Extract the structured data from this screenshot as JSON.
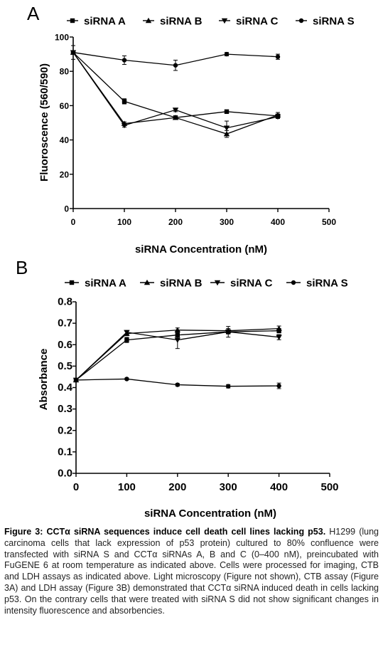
{
  "panels": [
    {
      "letter": "A",
      "chart_data": {
        "type": "line",
        "title": "",
        "xlabel": "siRNA Concentration (nM)",
        "ylabel": "Fluoroscence (560/590)",
        "xlim": [
          0,
          500
        ],
        "ylim": [
          0,
          100
        ],
        "xticks": [
          "0",
          "100",
          "200",
          "300",
          "400",
          "500"
        ],
        "yticks": [
          "0",
          "20",
          "40",
          "60",
          "80",
          "100"
        ],
        "x": [
          0,
          100,
          200,
          300,
          400
        ],
        "series": [
          {
            "name": "siRNA A",
            "marker": "square",
            "values": [
              91,
              62.5,
              53,
              56.5,
              54
            ],
            "errors": [
              1,
              1.5,
              1,
              1,
              1
            ]
          },
          {
            "name": "siRNA B",
            "marker": "triangle-up",
            "values": [
              91,
              49.5,
              53,
              43.5,
              54.5
            ],
            "errors": [
              1,
              1,
              1,
              2,
              1.5
            ]
          },
          {
            "name": "siRNA C",
            "marker": "triangle-down",
            "values": [
              91,
              48.5,
              57.5,
              47,
              53.5
            ],
            "errors": [
              1,
              1,
              1,
              4,
              1
            ]
          },
          {
            "name": "siRNA S",
            "marker": "circle",
            "values": [
              91,
              86.5,
              83.5,
              90,
              88.5
            ],
            "errors": [
              4,
              2.5,
              3,
              1,
              1.5
            ]
          }
        ],
        "legend_position": "top"
      }
    },
    {
      "letter": "B",
      "chart_data": {
        "type": "line",
        "title": "",
        "xlabel": "siRNA Concentration (nM)",
        "ylabel": "Absorbance",
        "xlim": [
          0,
          500
        ],
        "ylim": [
          0,
          0.8
        ],
        "xticks": [
          "0",
          "100",
          "200",
          "300",
          "400",
          "500"
        ],
        "yticks": [
          "0.0",
          "0.1",
          "0.2",
          "0.3",
          "0.4",
          "0.5",
          "0.6",
          "0.7",
          "0.8"
        ],
        "x": [
          0,
          100,
          200,
          300,
          400
        ],
        "series": [
          {
            "name": "siRNA A",
            "marker": "square",
            "values": [
              0.435,
              0.622,
              0.645,
              0.66,
              0.665
            ],
            "errors": [
              0.005,
              0.012,
              0.01,
              0.01,
              0.01
            ]
          },
          {
            "name": "siRNA B",
            "marker": "triangle-up",
            "values": [
              0.435,
              0.652,
              0.668,
              0.665,
              0.675
            ],
            "errors": [
              0.005,
              0.01,
              0.01,
              0.01,
              0.012
            ]
          },
          {
            "name": "siRNA C",
            "marker": "triangle-down",
            "values": [
              0.435,
              0.658,
              0.622,
              0.66,
              0.635
            ],
            "errors": [
              0.005,
              0.008,
              0.04,
              0.025,
              0.012
            ]
          },
          {
            "name": "siRNA S",
            "marker": "circle",
            "values": [
              0.435,
              0.44,
              0.413,
              0.406,
              0.408
            ],
            "errors": [
              0.005,
              0.004,
              0.006,
              0.008,
              0.013
            ]
          }
        ],
        "legend_position": "top"
      }
    }
  ],
  "caption": {
    "title": "Figure 3: CCTα siRNA sequences induce cell death cell lines lacking p53.",
    "body": "H1299 (lung carcinoma cells that lack expression of p53 protein) cultured to 80% confluence were transfected with siRNA S and CCTα siRNAs A, B and C (0–400 nM), preincubated with FuGENE 6 at room temperature as indicated above. Cells were processed for imaging, CTB and LDH assays as indicated above. Light microscopy (Figure not shown), CTB assay (Figure 3A) and LDH assay (Figure 3B) demonstrated that CCTα siRNA induced death in cells lacking p53. On the contrary cells that were treated with siRNA S did not show significant changes in intensity fluorescence and absorbencies."
  }
}
